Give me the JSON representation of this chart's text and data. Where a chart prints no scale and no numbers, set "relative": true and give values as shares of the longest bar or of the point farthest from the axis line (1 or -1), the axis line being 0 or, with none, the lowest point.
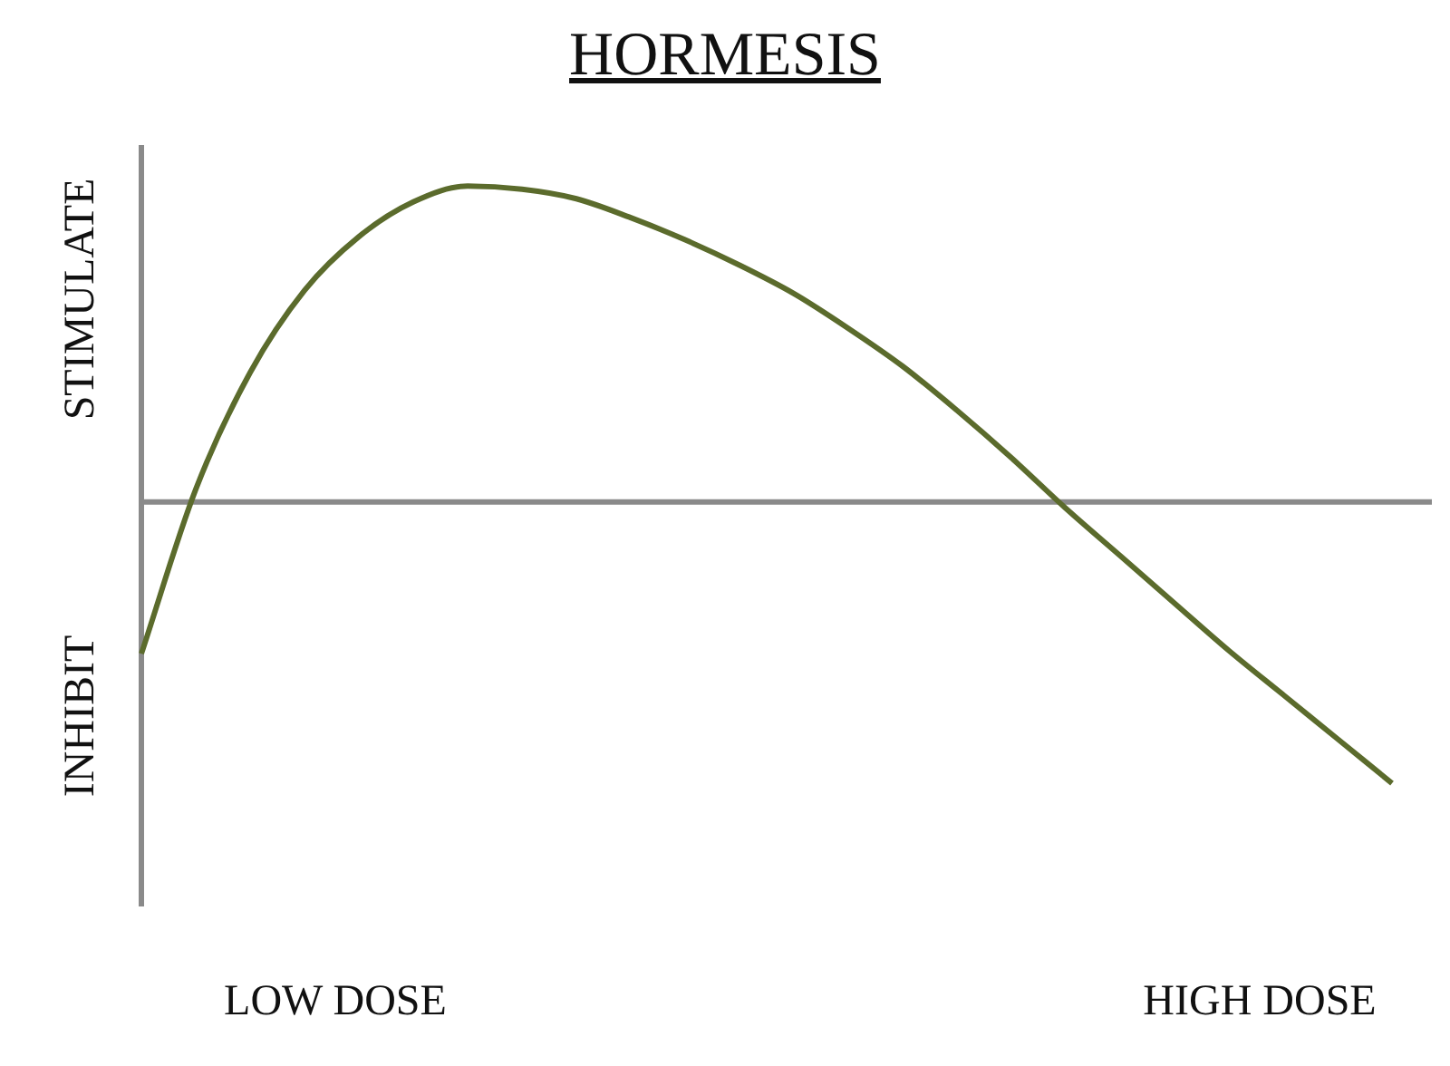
{
  "chart_data": {
    "type": "line",
    "title": "HORMESIS",
    "relative": true,
    "categories": [
      null,
      null,
      null,
      null,
      null,
      null,
      null,
      null,
      null,
      null,
      null,
      null,
      null,
      null,
      null,
      null,
      null,
      null,
      null,
      null,
      null,
      null,
      null,
      null
    ],
    "series": [
      {
        "color": "#5b6b2c",
        "values": [
          -0.48,
          0.04,
          0.41,
          0.67,
          0.84,
          0.95,
          1,
          0.99,
          0.96,
          0.9,
          0.83,
          0.75,
          0.66,
          0.55,
          0.43,
          0.29,
          0.14,
          -0.02,
          -0.17,
          -0.32,
          -0.47,
          -0.61,
          -0.75,
          -0.89
        ]
      }
    ],
    "annotations": [
      "STIMULATE",
      "INHIBIT",
      "LOW DOSE",
      "HIGH DOSE"
    ]
  }
}
